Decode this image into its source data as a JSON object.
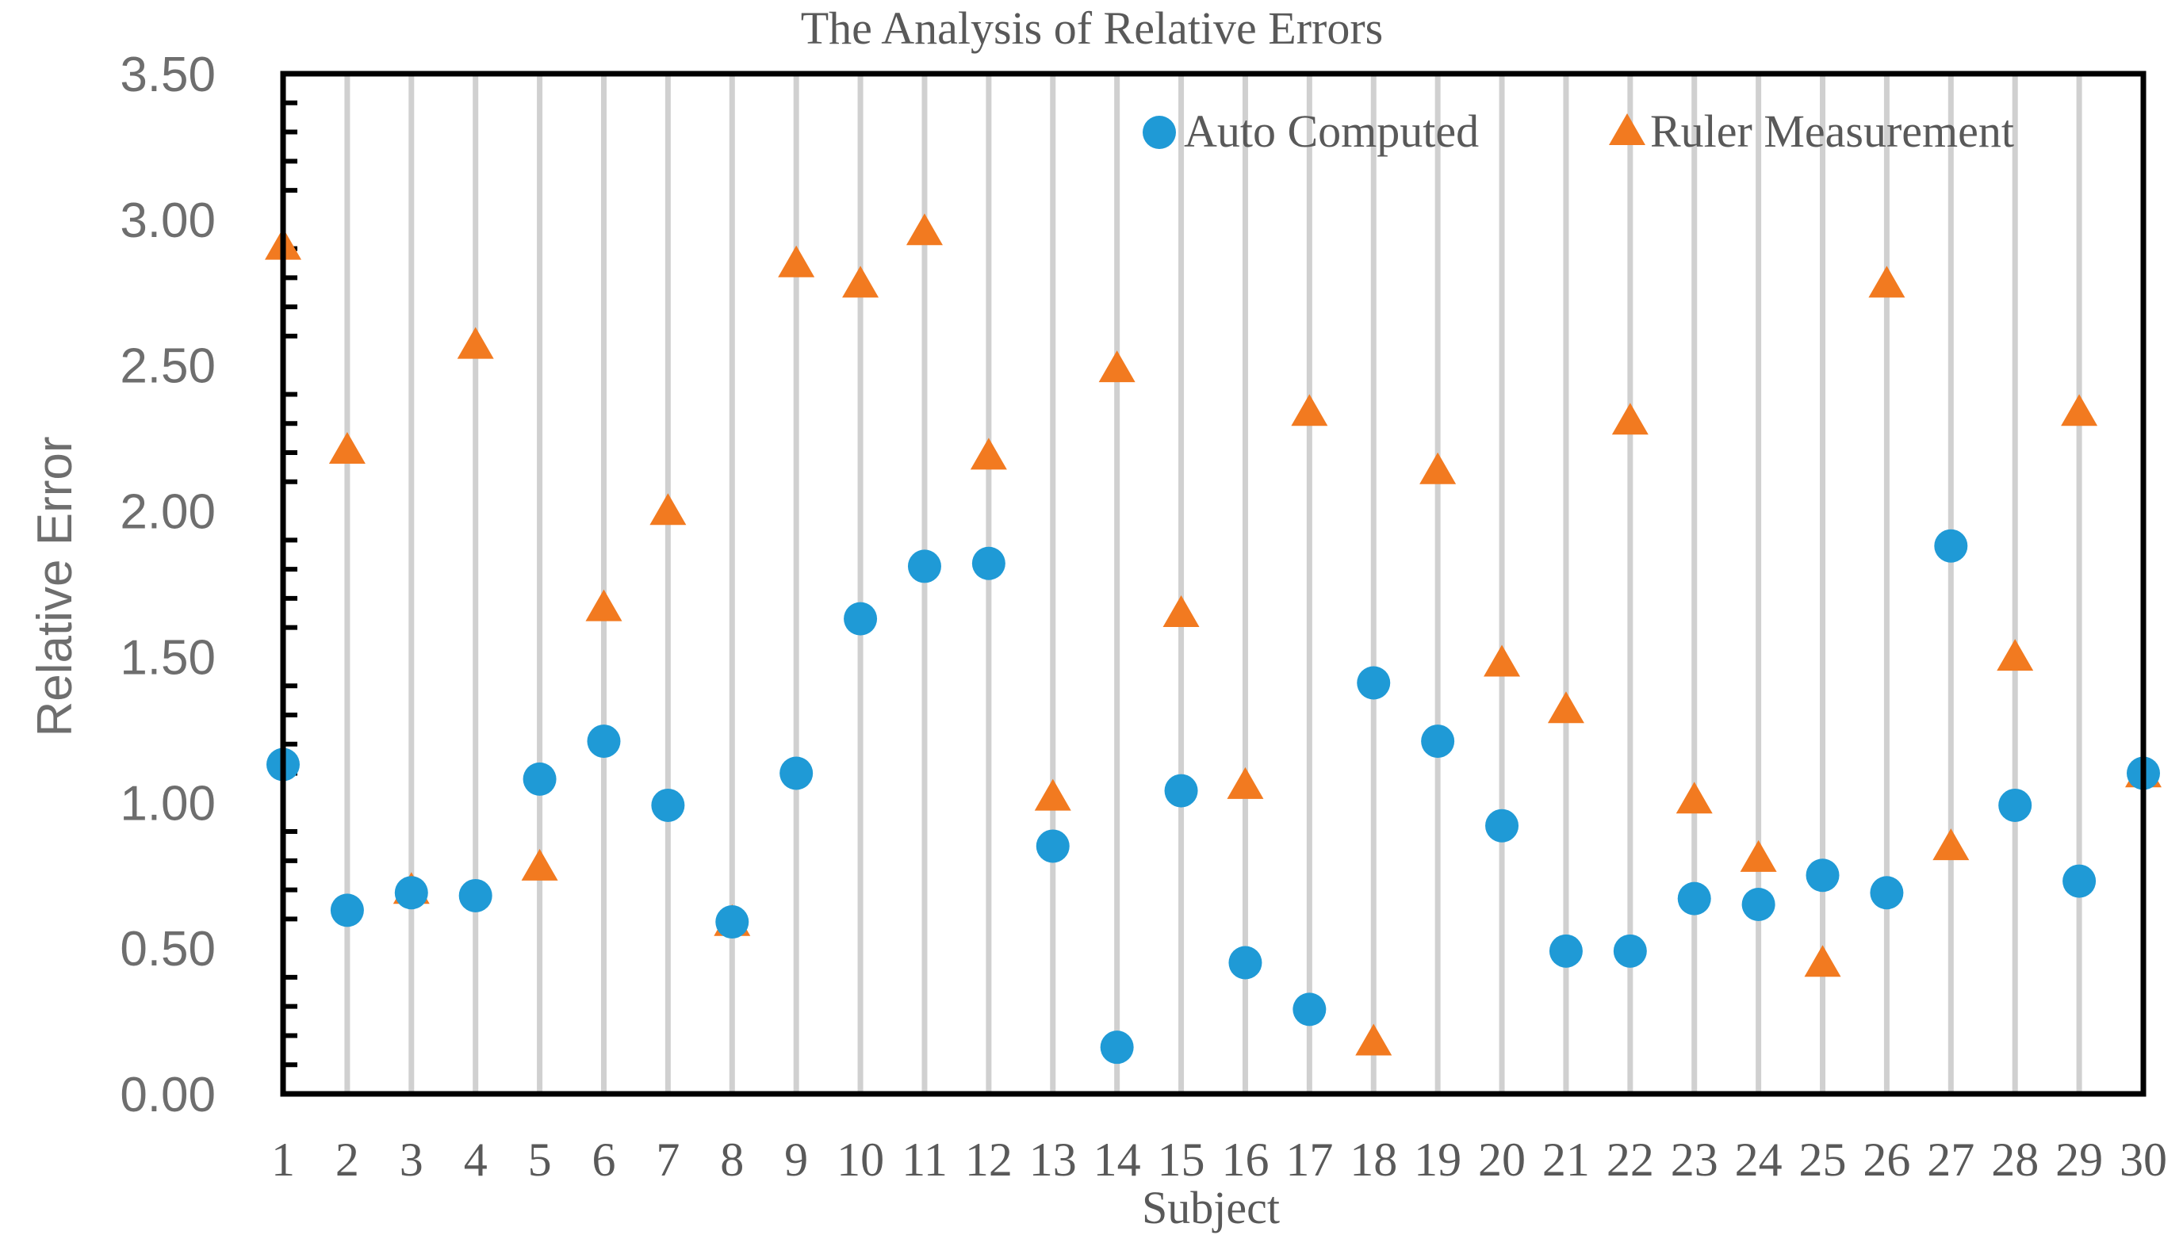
{
  "chart_data": {
    "type": "scatter",
    "title": "The Analysis of Relative Errors",
    "xlabel": "Subject",
    "ylabel": "Relative Error",
    "x": [
      1,
      2,
      3,
      4,
      5,
      6,
      7,
      8,
      9,
      10,
      11,
      12,
      13,
      14,
      15,
      16,
      17,
      18,
      19,
      20,
      21,
      22,
      23,
      24,
      25,
      26,
      27,
      28,
      29,
      30
    ],
    "x_tick_labels": [
      "1",
      "2",
      "3",
      "4",
      "5",
      "6",
      "7",
      "8",
      "9",
      "10",
      "11",
      "12",
      "13",
      "14",
      "15",
      "16",
      "17",
      "18",
      "19",
      "20",
      "21",
      "22",
      "23",
      "24",
      "25",
      "26",
      "27",
      "28",
      "29",
      "30"
    ],
    "ylim": [
      0,
      3.5
    ],
    "y_tick_labels": [
      "0.00",
      "0.50",
      "1.00",
      "1.50",
      "2.00",
      "2.50",
      "3.00",
      "3.50"
    ],
    "grid": "vertical",
    "legend_position": "top-right",
    "series": [
      {
        "name": "Auto Computed",
        "marker": "circle",
        "color": "#1f9ad6",
        "values": [
          1.13,
          0.63,
          0.69,
          0.68,
          1.08,
          1.21,
          0.99,
          0.59,
          1.1,
          1.63,
          1.81,
          1.82,
          0.85,
          0.16,
          1.04,
          0.45,
          0.29,
          1.41,
          1.21,
          0.92,
          0.49,
          0.49,
          0.67,
          0.65,
          0.75,
          0.69,
          1.88,
          0.99,
          0.73,
          1.1
        ]
      },
      {
        "name": "Ruler Measurement",
        "marker": "triangle",
        "color": "#f27a20",
        "values": [
          2.9,
          2.2,
          0.69,
          2.56,
          0.77,
          1.66,
          1.99,
          0.58,
          2.84,
          2.77,
          2.95,
          2.18,
          1.01,
          2.48,
          1.64,
          1.05,
          2.33,
          0.17,
          2.13,
          1.47,
          1.31,
          2.3,
          1.0,
          0.8,
          0.44,
          2.77,
          0.84,
          1.49,
          2.33,
          1.09
        ]
      }
    ]
  }
}
